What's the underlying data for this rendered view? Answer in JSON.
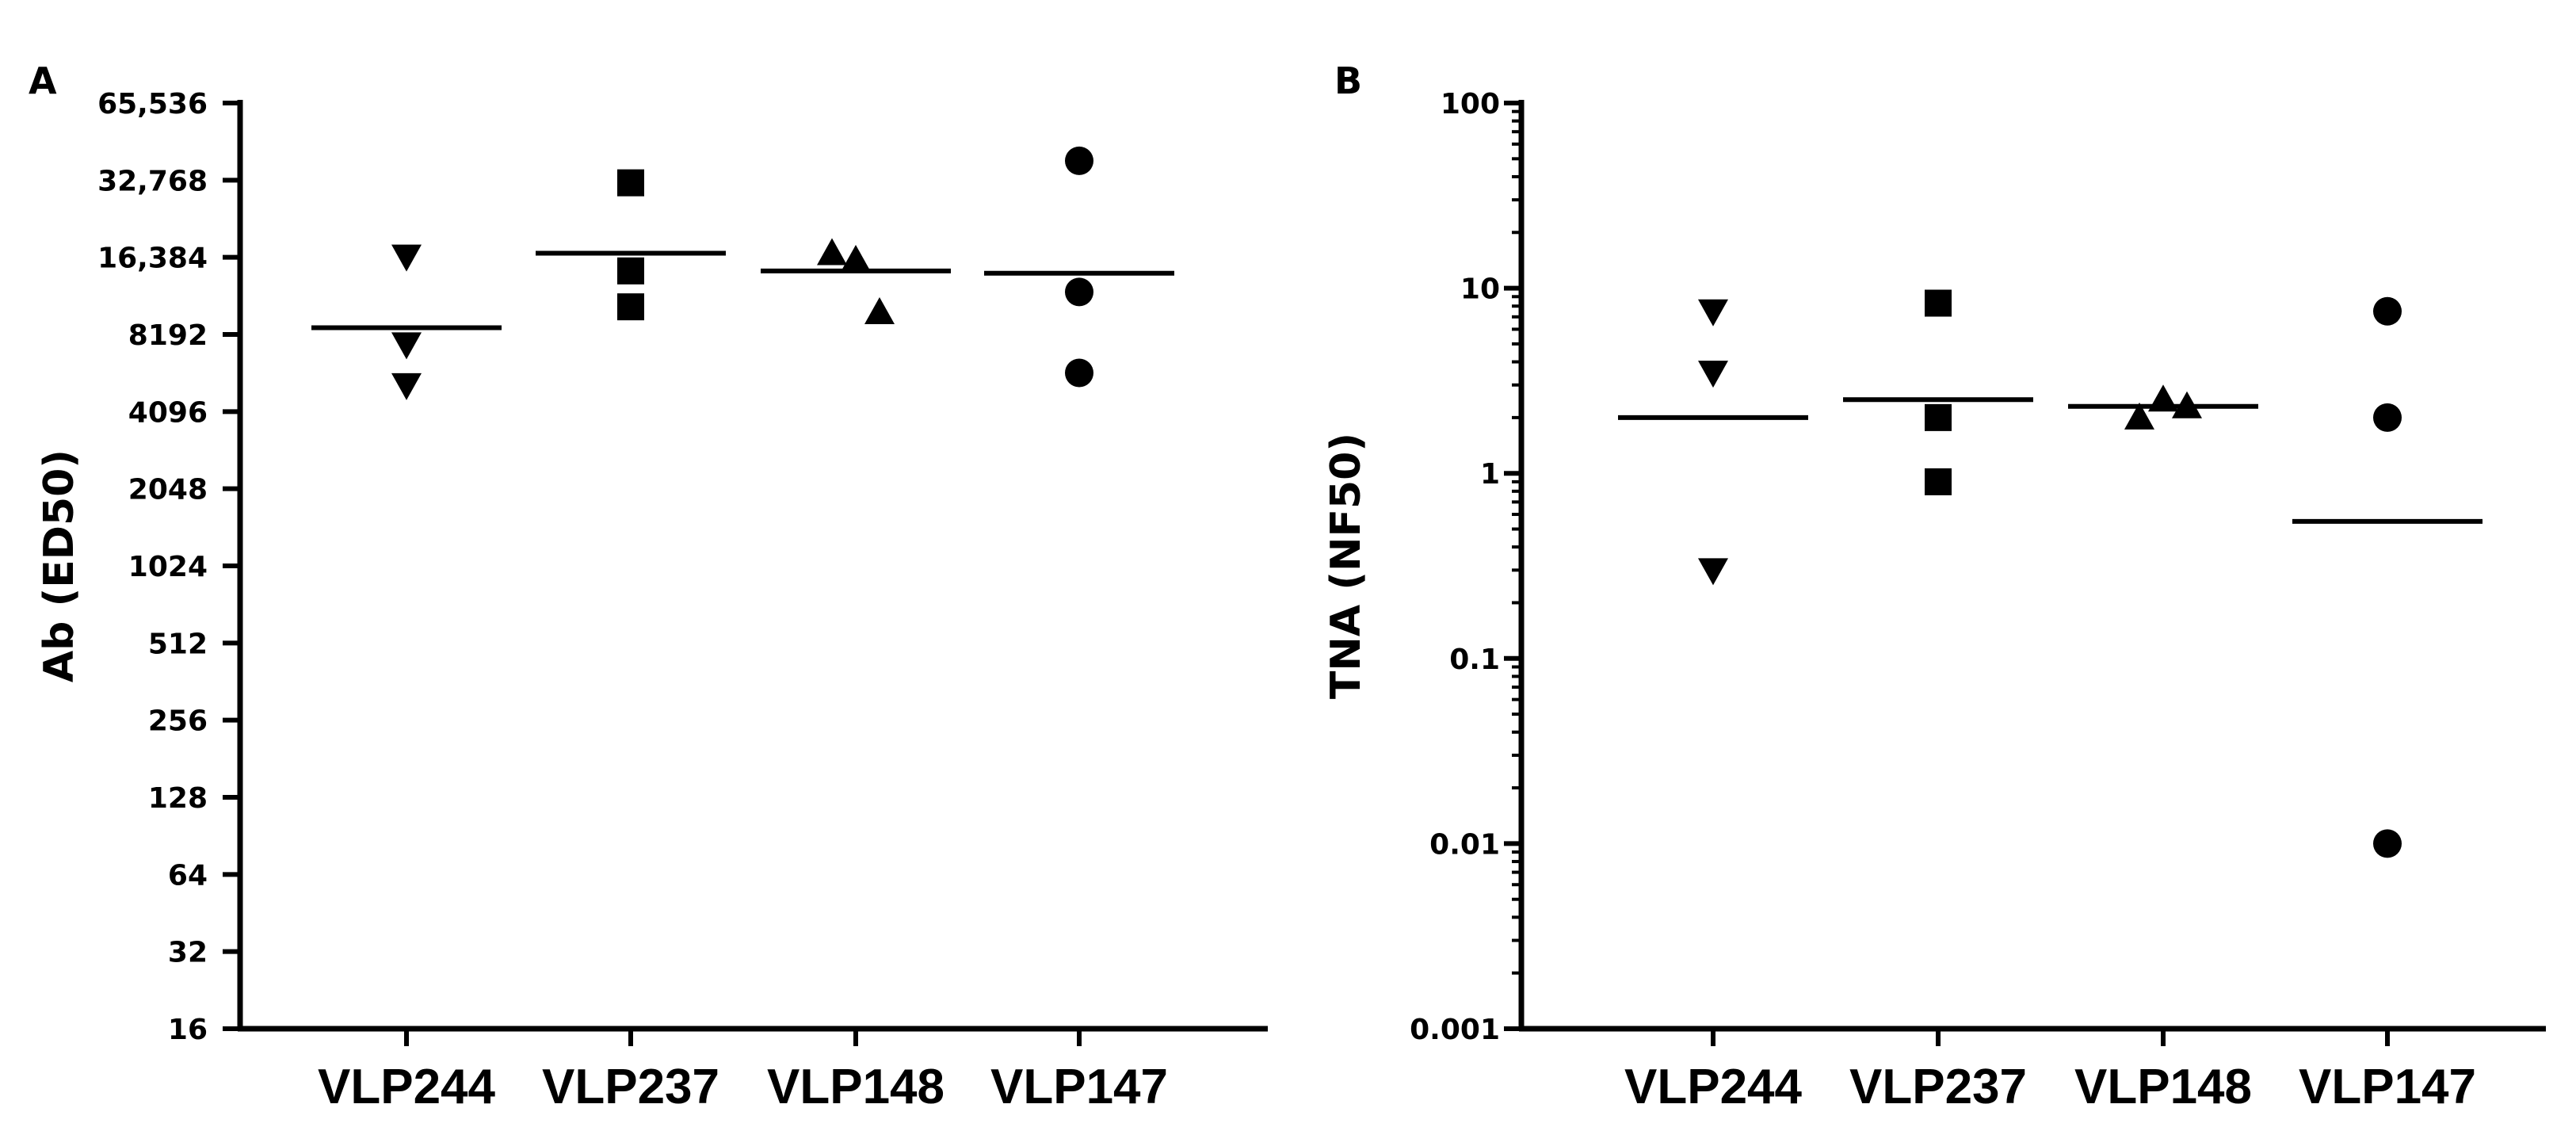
{
  "chart_data": [
    {
      "panel": "A",
      "type": "scatter",
      "ylabel": "Ab (ED50)",
      "xlabel": "",
      "yscale": "log2",
      "ylim": [
        16,
        65536
      ],
      "yticks": [
        16,
        32,
        64,
        128,
        256,
        512,
        1024,
        2048,
        4096,
        8192,
        16384,
        32768,
        65536
      ],
      "ytick_labels": [
        "16",
        "32",
        "64",
        "128",
        "256",
        "512",
        "1024",
        "2048",
        "4096",
        "8192",
        "16,384",
        "32,768",
        "65,536"
      ],
      "categories": [
        "VLP244",
        "VLP237",
        "VLP148",
        "VLP147"
      ],
      "series": [
        {
          "category": "VLP244",
          "marker": "triangle-down",
          "points": [
            16500,
            7500,
            5200
          ],
          "mean": 8700
        },
        {
          "category": "VLP237",
          "marker": "square",
          "points": [
            32000,
            14500,
            10500
          ],
          "mean": 17000
        },
        {
          "category": "VLP148",
          "marker": "triangle-up",
          "points": [
            17000,
            16000,
            10000
          ],
          "mean": 14500
        },
        {
          "category": "VLP147",
          "marker": "circle",
          "points": [
            39000,
            12000,
            5800
          ],
          "mean": 14200
        }
      ]
    },
    {
      "panel": "B",
      "type": "scatter",
      "ylabel": "TNA (NF50)",
      "xlabel": "",
      "yscale": "log10",
      "ylim": [
        0.001,
        100
      ],
      "yticks": [
        0.001,
        0.01,
        0.1,
        1,
        10,
        100
      ],
      "ytick_labels": [
        "0.001",
        "0.01",
        "0.1",
        "1",
        "10",
        "100"
      ],
      "categories": [
        "VLP244",
        "VLP237",
        "VLP148",
        "VLP147"
      ],
      "series": [
        {
          "category": "VLP244",
          "marker": "triangle-down",
          "points": [
            7.5,
            3.5,
            0.3
          ],
          "mean": 2.0
        },
        {
          "category": "VLP237",
          "marker": "square",
          "points": [
            8.3,
            2.0,
            0.9
          ],
          "mean": 2.5
        },
        {
          "category": "VLP148",
          "marker": "triangle-up",
          "points": [
            2.0,
            2.5,
            2.3
          ],
          "mean": 2.3
        },
        {
          "category": "VLP147",
          "marker": "circle",
          "points": [
            7.5,
            2.0,
            0.01
          ],
          "mean": 0.55
        }
      ]
    }
  ]
}
